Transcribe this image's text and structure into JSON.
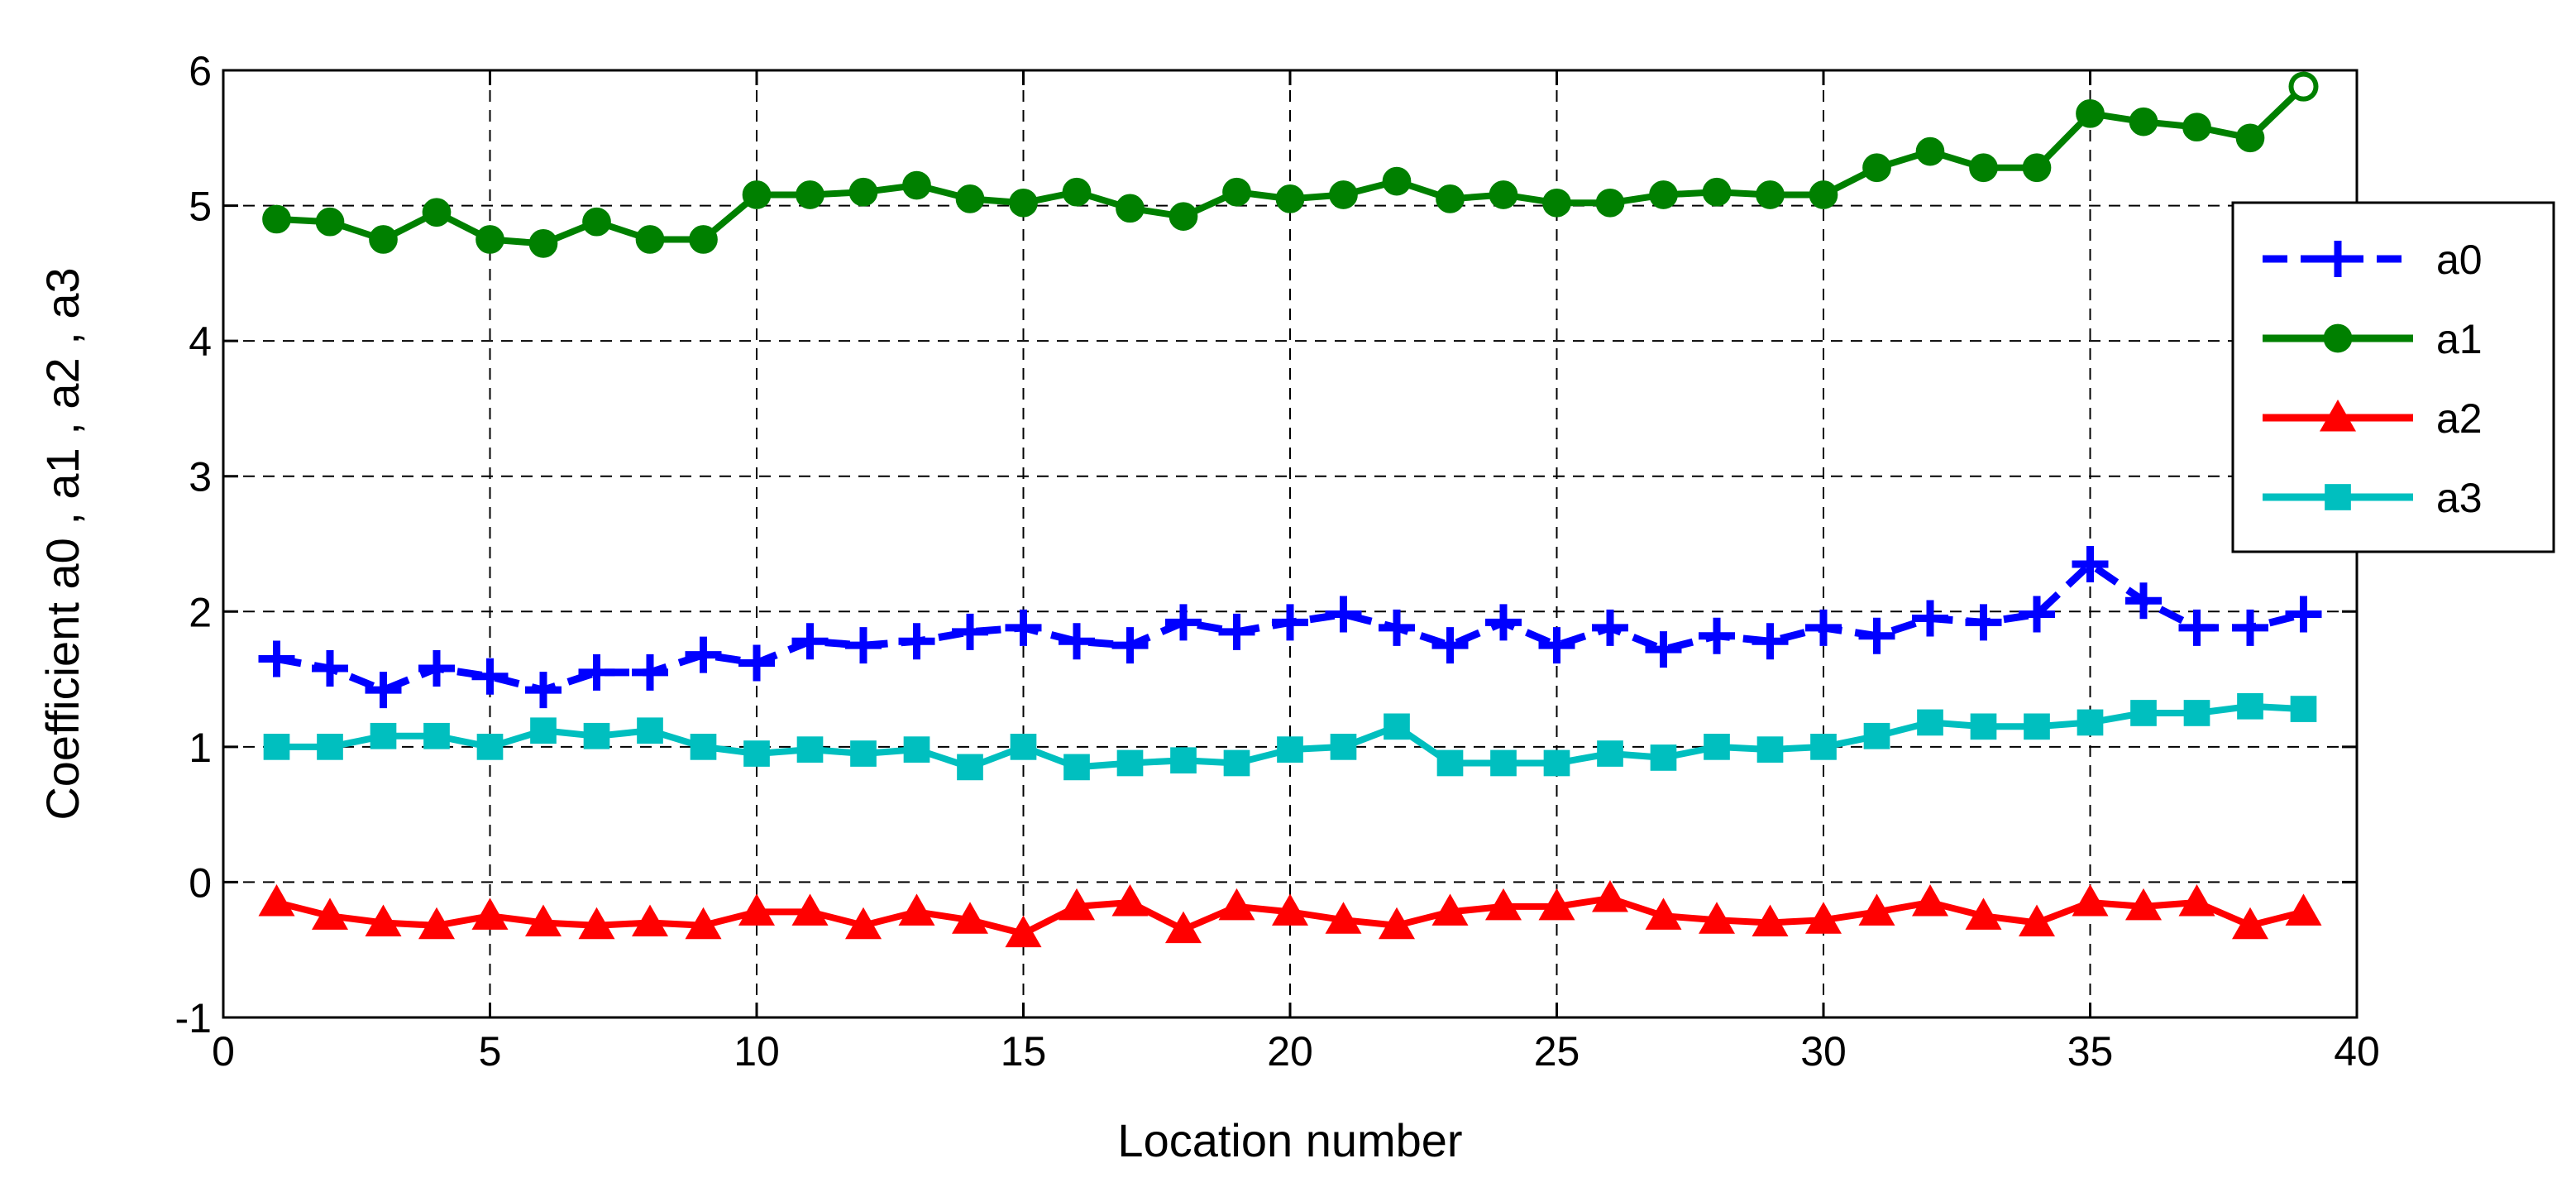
{
  "chart_data": {
    "type": "line",
    "xlabel": "Location number",
    "ylabel": "Coefficient   a0 , a1 , a2 , a3",
    "xlim": [
      0,
      40
    ],
    "ylim": [
      -1,
      6
    ],
    "xticks": [
      "0",
      "5",
      "10",
      "15",
      "20",
      "25",
      "30",
      "35",
      "40"
    ],
    "yticks": [
      "-1",
      "0",
      "1",
      "2",
      "3",
      "4",
      "5",
      "6"
    ],
    "grid": true,
    "legend_position": "right",
    "x": [
      1,
      2,
      3,
      4,
      5,
      6,
      7,
      8,
      9,
      10,
      11,
      12,
      13,
      14,
      15,
      16,
      17,
      18,
      19,
      20,
      21,
      22,
      23,
      24,
      25,
      26,
      27,
      28,
      29,
      30,
      31,
      32,
      33,
      34,
      35,
      36,
      37,
      38,
      39
    ],
    "series": [
      {
        "name": "a0",
        "color": "#0000ff",
        "marker": "plus",
        "dashed": true,
        "values": [
          1.65,
          1.58,
          1.42,
          1.58,
          1.52,
          1.42,
          1.55,
          1.55,
          1.68,
          1.62,
          1.78,
          1.75,
          1.78,
          1.85,
          1.88,
          1.78,
          1.75,
          1.92,
          1.85,
          1.92,
          1.98,
          1.88,
          1.75,
          1.92,
          1.75,
          1.88,
          1.72,
          1.82,
          1.78,
          1.88,
          1.82,
          1.95,
          1.92,
          1.98,
          2.35,
          2.08,
          1.88,
          1.88,
          1.98
        ]
      },
      {
        "name": "a1",
        "color": "#008000",
        "marker": "circle",
        "dashed": false,
        "values": [
          4.9,
          4.88,
          4.75,
          4.95,
          4.75,
          4.72,
          4.88,
          4.75,
          4.75,
          5.08,
          5.08,
          5.1,
          5.15,
          5.05,
          5.02,
          5.1,
          4.98,
          4.92,
          5.1,
          5.05,
          5.08,
          5.18,
          5.05,
          5.08,
          5.02,
          5.02,
          5.08,
          5.1,
          5.08,
          5.08,
          5.28,
          5.4,
          5.28,
          5.28,
          5.68,
          5.62,
          5.58,
          5.5,
          5.88
        ]
      },
      {
        "name": "a2",
        "color": "#ff0000",
        "marker": "triangle",
        "dashed": false,
        "values": [
          -0.15,
          -0.25,
          -0.3,
          -0.32,
          -0.25,
          -0.3,
          -0.32,
          -0.3,
          -0.32,
          -0.22,
          -0.22,
          -0.32,
          -0.22,
          -0.28,
          -0.38,
          -0.18,
          -0.15,
          -0.35,
          -0.18,
          -0.22,
          -0.28,
          -0.32,
          -0.22,
          -0.18,
          -0.18,
          -0.12,
          -0.25,
          -0.28,
          -0.3,
          -0.28,
          -0.22,
          -0.15,
          -0.25,
          -0.3,
          -0.15,
          -0.18,
          -0.15,
          -0.32,
          -0.22
        ]
      },
      {
        "name": "a3",
        "color": "#00bfbf",
        "marker": "square",
        "dashed": false,
        "values": [
          1.0,
          1.0,
          1.08,
          1.08,
          1.0,
          1.12,
          1.08,
          1.12,
          1.0,
          0.95,
          0.98,
          0.95,
          0.98,
          0.85,
          1.0,
          0.85,
          0.88,
          0.9,
          0.88,
          0.98,
          1.0,
          1.15,
          0.88,
          0.88,
          0.88,
          0.95,
          0.92,
          1.0,
          0.98,
          1.0,
          1.08,
          1.18,
          1.15,
          1.15,
          1.18,
          1.25,
          1.25,
          1.3,
          1.28
        ]
      }
    ]
  }
}
